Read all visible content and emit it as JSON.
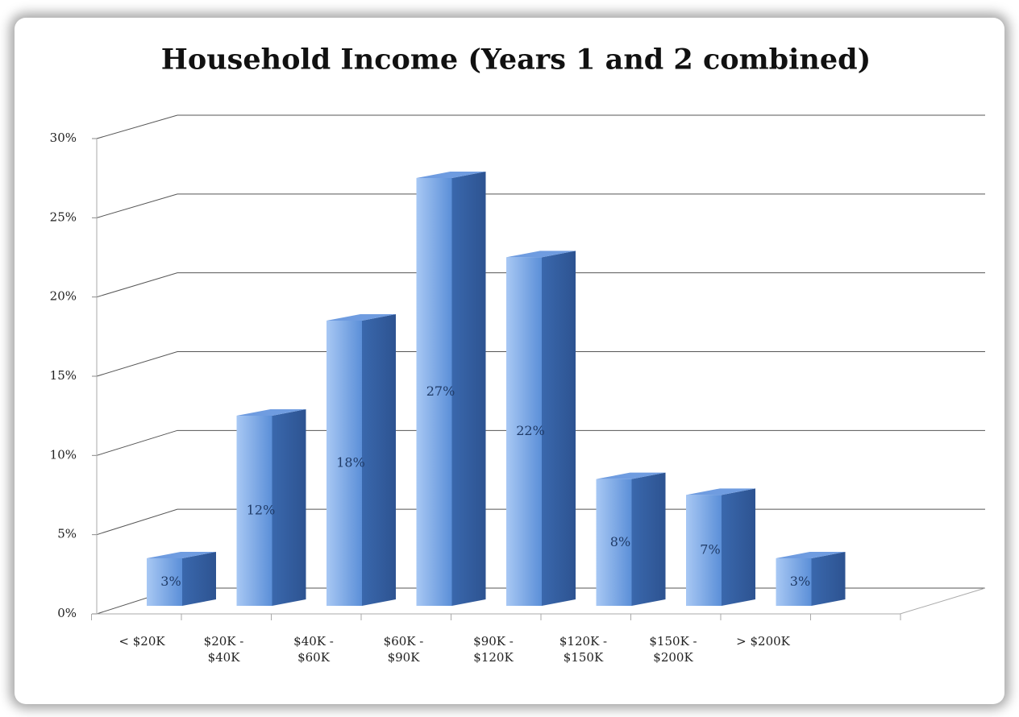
{
  "chart_data": {
    "type": "bar3d",
    "title": "Household Income (Years 1 and 2 combined)",
    "categories": [
      "< $20K",
      "$20K - $40K",
      "$40K - $60K",
      "$60K - $90K",
      "$90K - $120K",
      "$120K - $150K",
      "$150K - $200K",
      "> $200K"
    ],
    "values": [
      3,
      12,
      18,
      27,
      22,
      8,
      7,
      3
    ],
    "value_labels": [
      "3%",
      "12%",
      "18%",
      "27%",
      "22%",
      "8%",
      "7%",
      "3%"
    ],
    "color": "#4f81bd",
    "ylim": [
      0,
      30
    ],
    "yticks": [
      {
        "value": 0,
        "label": "0%"
      },
      {
        "value": 5,
        "label": "5%"
      },
      {
        "value": 10,
        "label": "10%"
      },
      {
        "value": 15,
        "label": "15%"
      },
      {
        "value": 20,
        "label": "20%"
      },
      {
        "value": 25,
        "label": "25%"
      },
      {
        "value": 30,
        "label": "30%"
      }
    ],
    "grid": true
  }
}
